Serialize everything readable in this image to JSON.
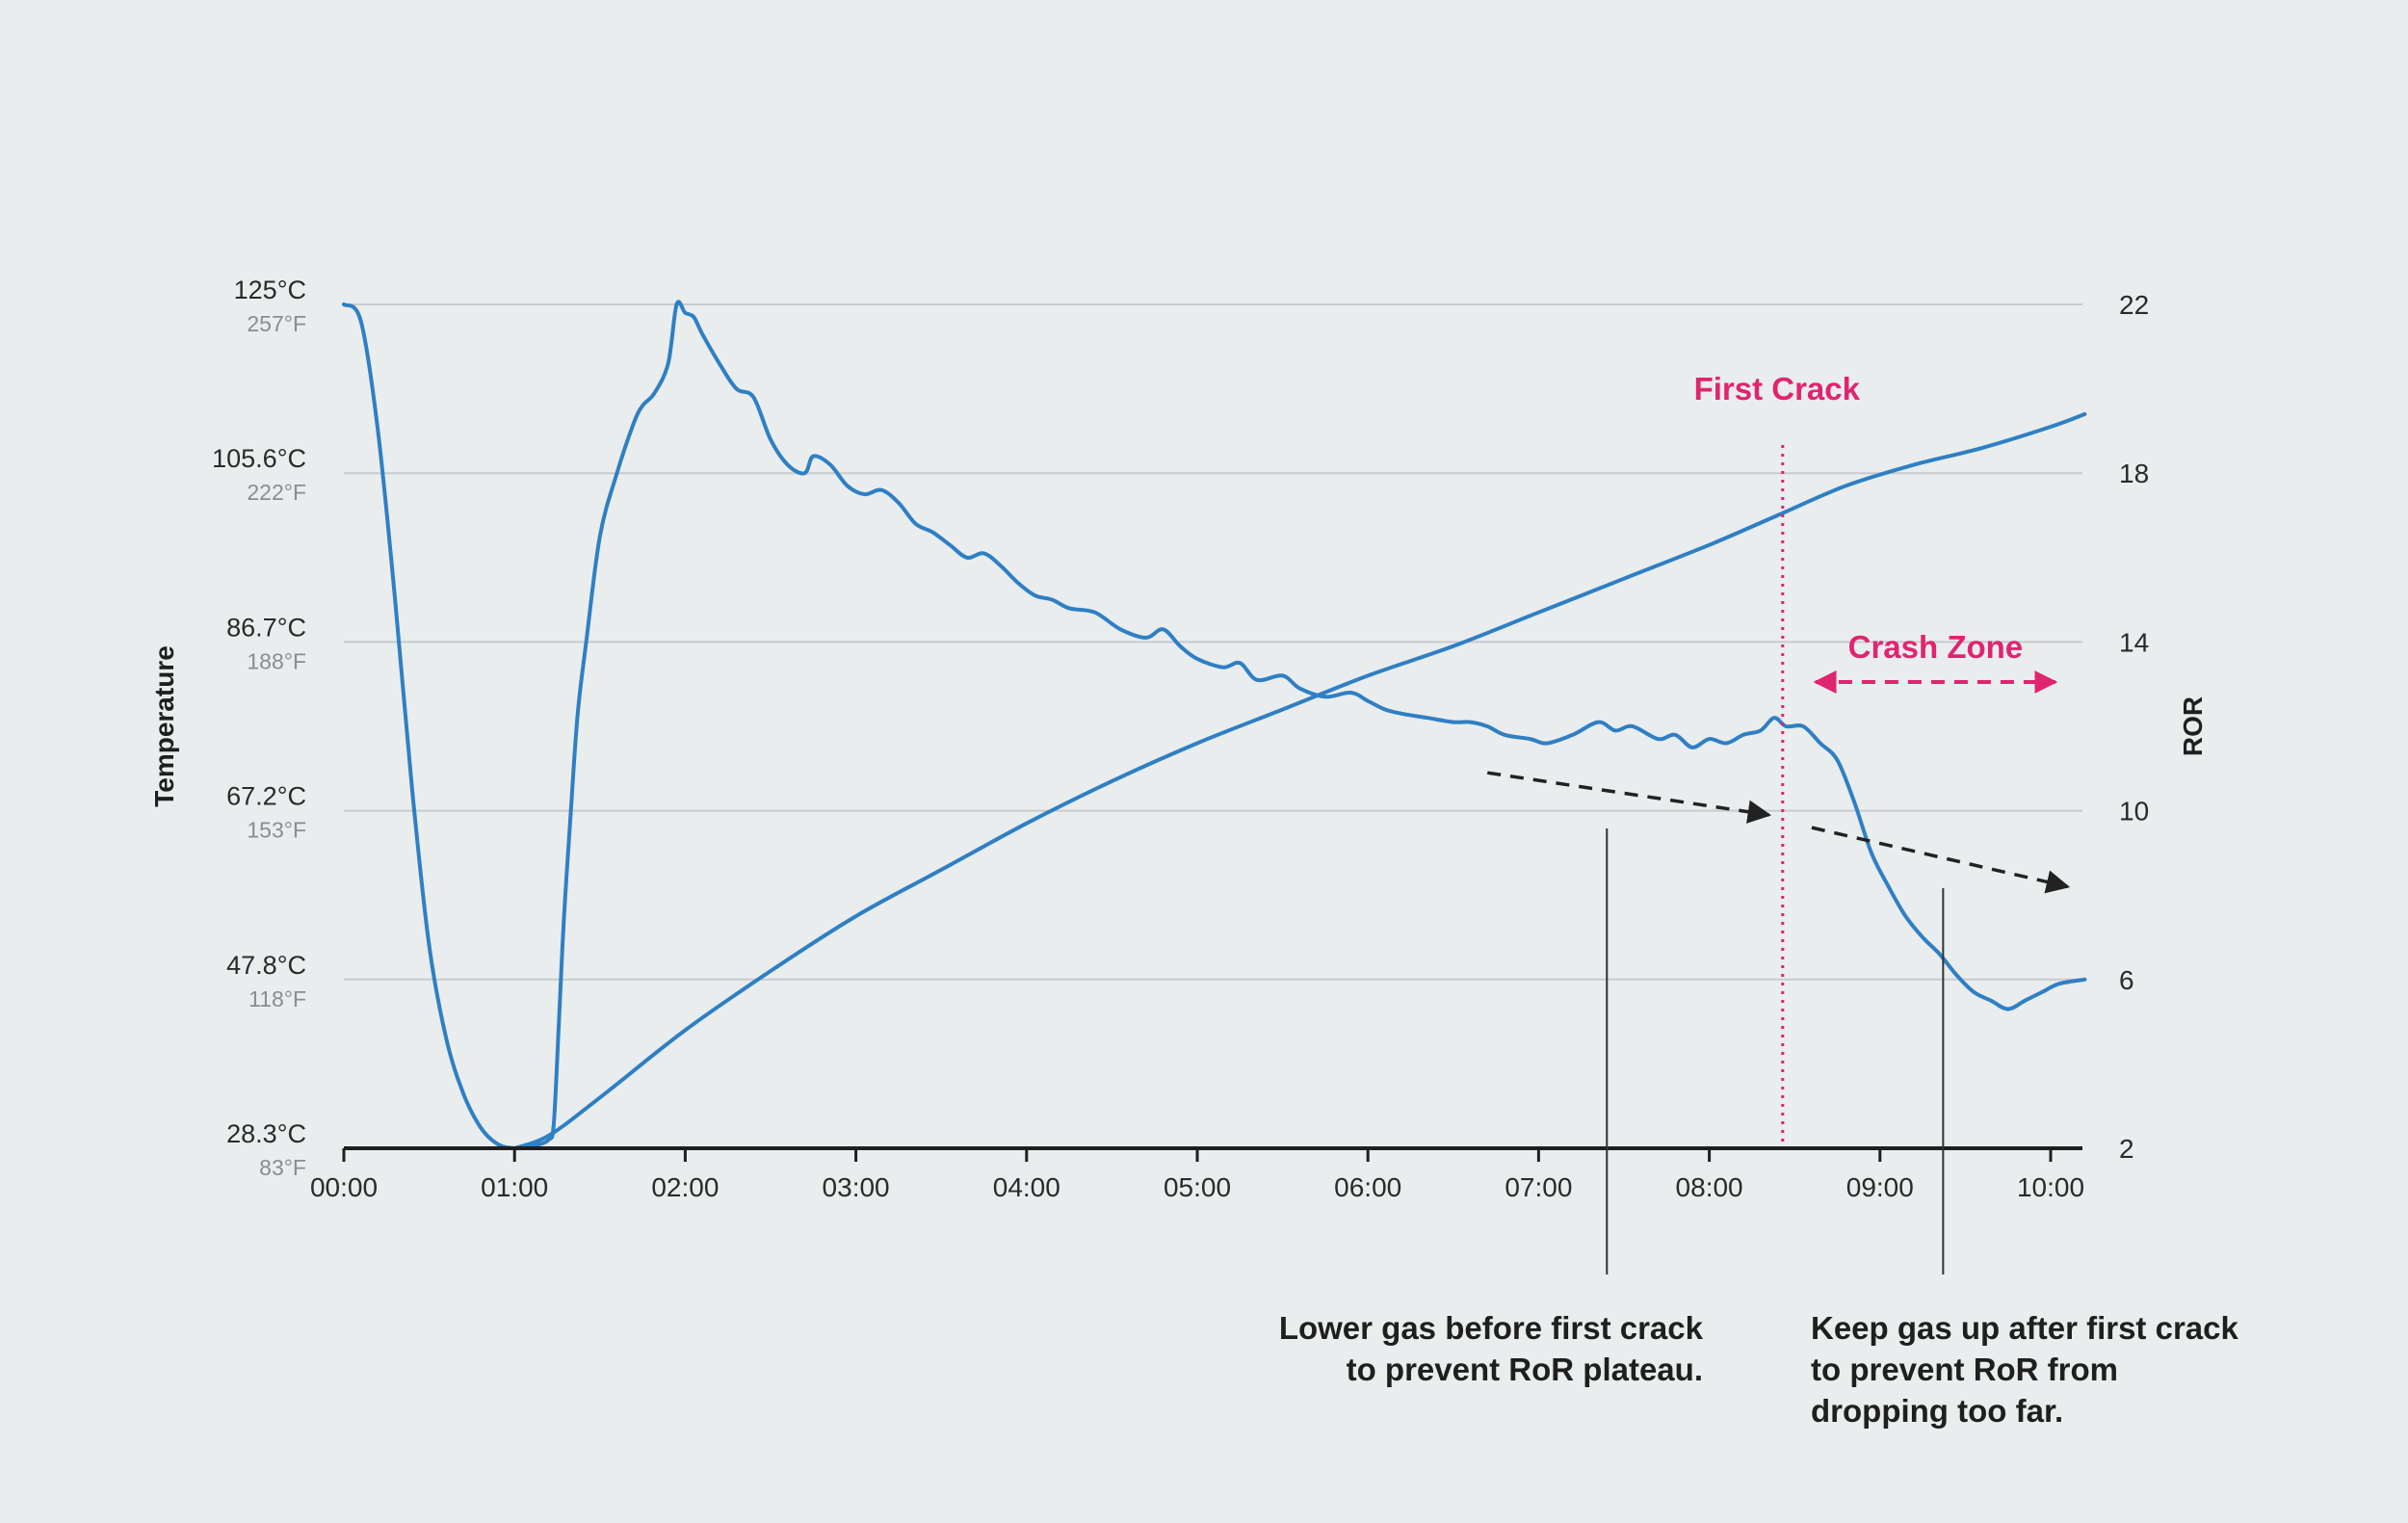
{
  "colors": {
    "background": "#e9edee",
    "series": "#2f7fc4",
    "highlight": "#e0246f",
    "gridline": "#c7cbcd",
    "axis": "#1f1f1f",
    "arrow": "#222222"
  },
  "chart_data": {
    "type": "line",
    "title": "",
    "xlabel": "",
    "ylabel_left": "Temperature",
    "ylabel_right": "ROR",
    "x_ticks": [
      "00:00",
      "01:00",
      "02:00",
      "03:00",
      "04:00",
      "05:00",
      "06:00",
      "07:00",
      "08:00",
      "09:00",
      "10:00"
    ],
    "x_unit": "minutes",
    "xlim": [
      0,
      10.2
    ],
    "left_ticks": [
      {
        "c": "28.3°C",
        "f": "83°F"
      },
      {
        "c": "47.8°C",
        "f": "118°F"
      },
      {
        "c": "67.2°C",
        "f": "153°F"
      },
      {
        "c": "86.7°C",
        "f": "188°F"
      },
      {
        "c": "105.6°C",
        "f": "222°F"
      },
      {
        "c": "125°C",
        "f": "257°F"
      }
    ],
    "right_ticks": [
      "2",
      "6",
      "10",
      "14",
      "18",
      "22"
    ],
    "ror_ylim": [
      2,
      22
    ],
    "grid": true,
    "series": [
      {
        "role": "ror",
        "axis": "right",
        "points": [
          [
            0,
            22
          ],
          [
            0.1,
            21.6
          ],
          [
            0.2,
            19
          ],
          [
            0.3,
            15
          ],
          [
            0.4,
            10.5
          ],
          [
            0.5,
            6.8
          ],
          [
            0.6,
            4.6
          ],
          [
            0.7,
            3.3
          ],
          [
            0.8,
            2.5
          ],
          [
            0.9,
            2.1
          ],
          [
            1,
            2
          ],
          [
            1.1,
            2.05
          ],
          [
            1.2,
            2.2
          ],
          [
            1.23,
            2.6
          ],
          [
            1.26,
            5
          ],
          [
            1.29,
            7.5
          ],
          [
            1.33,
            10
          ],
          [
            1.37,
            12.3
          ],
          [
            1.42,
            14
          ],
          [
            1.5,
            16.5
          ],
          [
            1.6,
            18
          ],
          [
            1.7,
            19.2
          ],
          [
            1.75,
            19.6
          ],
          [
            1.82,
            19.9
          ],
          [
            1.9,
            20.6
          ],
          [
            1.95,
            22
          ],
          [
            2,
            21.8
          ],
          [
            2.05,
            21.7
          ],
          [
            2.1,
            21.3
          ],
          [
            2.2,
            20.6
          ],
          [
            2.3,
            20
          ],
          [
            2.4,
            19.8
          ],
          [
            2.5,
            18.8
          ],
          [
            2.6,
            18.2
          ],
          [
            2.7,
            18
          ],
          [
            2.75,
            18.4
          ],
          [
            2.85,
            18.2
          ],
          [
            2.95,
            17.7
          ],
          [
            3.05,
            17.5
          ],
          [
            3.15,
            17.6
          ],
          [
            3.25,
            17.3
          ],
          [
            3.35,
            16.8
          ],
          [
            3.45,
            16.6
          ],
          [
            3.55,
            16.3
          ],
          [
            3.65,
            16
          ],
          [
            3.75,
            16.1
          ],
          [
            3.85,
            15.8
          ],
          [
            3.95,
            15.4
          ],
          [
            4.05,
            15.1
          ],
          [
            4.15,
            15
          ],
          [
            4.25,
            14.8
          ],
          [
            4.4,
            14.7
          ],
          [
            4.55,
            14.3
          ],
          [
            4.7,
            14.1
          ],
          [
            4.8,
            14.3
          ],
          [
            4.9,
            13.9
          ],
          [
            5,
            13.6
          ],
          [
            5.15,
            13.4
          ],
          [
            5.25,
            13.5
          ],
          [
            5.35,
            13.1
          ],
          [
            5.5,
            13.2
          ],
          [
            5.6,
            12.9
          ],
          [
            5.75,
            12.7
          ],
          [
            5.9,
            12.8
          ],
          [
            6,
            12.6
          ],
          [
            6.1,
            12.4
          ],
          [
            6.2,
            12.3
          ],
          [
            6.35,
            12.2
          ],
          [
            6.5,
            12.1
          ],
          [
            6.6,
            12.1
          ],
          [
            6.7,
            12
          ],
          [
            6.8,
            11.8
          ],
          [
            6.95,
            11.7
          ],
          [
            7.05,
            11.6
          ],
          [
            7.2,
            11.8
          ],
          [
            7.35,
            12.1
          ],
          [
            7.45,
            11.9
          ],
          [
            7.55,
            12
          ],
          [
            7.7,
            11.7
          ],
          [
            7.8,
            11.8
          ],
          [
            7.9,
            11.5
          ],
          [
            8,
            11.7
          ],
          [
            8.1,
            11.6
          ],
          [
            8.2,
            11.8
          ],
          [
            8.3,
            11.9
          ],
          [
            8.38,
            12.2
          ],
          [
            8.45,
            12
          ],
          [
            8.55,
            12
          ],
          [
            8.65,
            11.6
          ],
          [
            8.75,
            11.2
          ],
          [
            8.85,
            10.2
          ],
          [
            8.95,
            9
          ],
          [
            9.05,
            8.2
          ],
          [
            9.15,
            7.5
          ],
          [
            9.25,
            7
          ],
          [
            9.35,
            6.6
          ],
          [
            9.45,
            6.1
          ],
          [
            9.55,
            5.7
          ],
          [
            9.65,
            5.5
          ],
          [
            9.75,
            5.3
          ],
          [
            9.85,
            5.5
          ],
          [
            9.95,
            5.7
          ],
          [
            10.05,
            5.9
          ],
          [
            10.2,
            6
          ]
        ]
      },
      {
        "role": "temperature",
        "axis": "right",
        "points": [
          [
            1,
            2
          ],
          [
            1.2,
            2.3
          ],
          [
            1.5,
            3.2
          ],
          [
            2,
            4.8
          ],
          [
            2.5,
            6.2
          ],
          [
            3,
            7.5
          ],
          [
            3.5,
            8.6
          ],
          [
            4,
            9.7
          ],
          [
            4.5,
            10.7
          ],
          [
            5,
            11.6
          ],
          [
            5.5,
            12.4
          ],
          [
            6,
            13.2
          ],
          [
            6.5,
            13.9
          ],
          [
            7,
            14.7
          ],
          [
            7.5,
            15.5
          ],
          [
            8,
            16.3
          ],
          [
            8.4,
            17
          ],
          [
            8.8,
            17.7
          ],
          [
            9.2,
            18.2
          ],
          [
            9.6,
            18.6
          ],
          [
            10,
            19.1
          ],
          [
            10.2,
            19.4
          ]
        ]
      }
    ],
    "first_crack_time": 8.43,
    "first_crack_label": "First Crack",
    "crash_zone_label": "Crash Zone",
    "crash_zone_range": [
      8.6,
      10.05
    ],
    "trend_arrows": [
      {
        "from": [
          6.7,
          10.9
        ],
        "to": [
          8.35,
          9.9
        ]
      },
      {
        "from": [
          8.6,
          9.6
        ],
        "to": [
          10.1,
          8.2
        ]
      }
    ],
    "annotations": [
      {
        "lines": [
          "Lower gas before first crack",
          "to prevent RoR plateau."
        ],
        "at_time": 7.4
      },
      {
        "lines": [
          "Keep gas up after first crack",
          "to prevent RoR from",
          "dropping too far."
        ],
        "at_time": 9.37
      }
    ]
  }
}
